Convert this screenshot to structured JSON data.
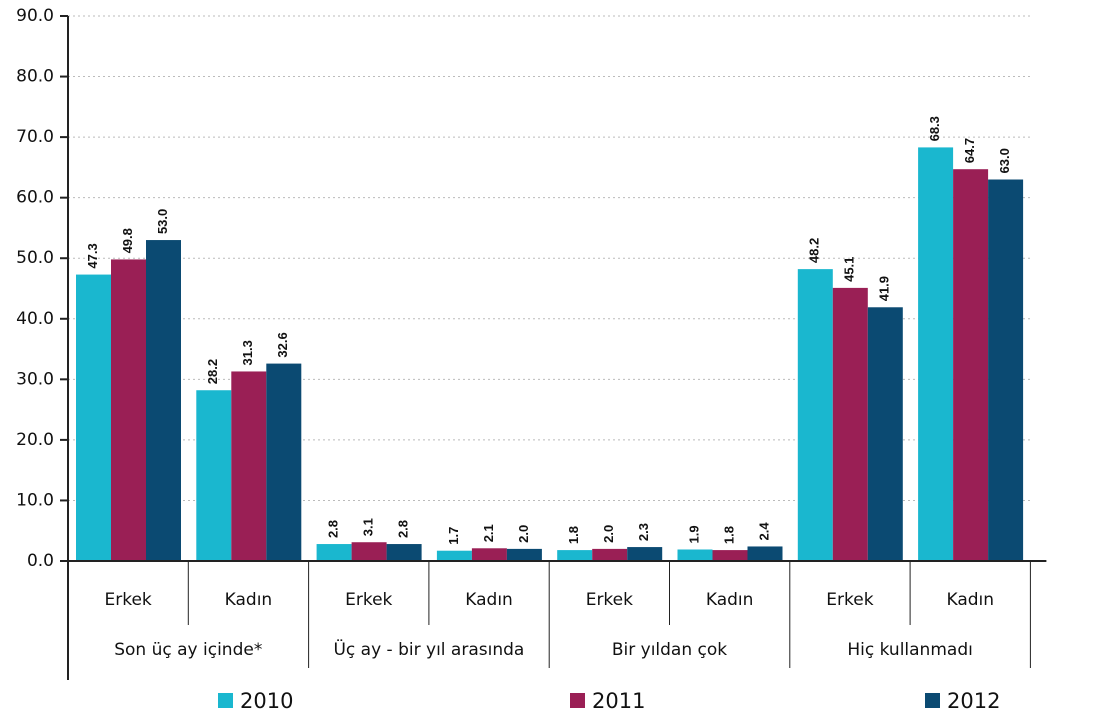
{
  "chart_data": {
    "type": "bar",
    "categories": [
      "Erkek",
      "Kadın",
      "Erkek",
      "Kadın",
      "Erkek",
      "Kadın",
      "Erkek",
      "Kadın"
    ],
    "groups": [
      "Son üç ay içinde*",
      "Üç ay - bir yıl arasında",
      "Bir yıldan çok",
      "Hiç kullanmadı"
    ],
    "series": [
      {
        "name": "2010",
        "color": "#1ab7cf",
        "values": [
          47.3,
          28.2,
          2.8,
          1.7,
          1.8,
          1.9,
          48.2,
          68.3
        ],
        "value_labels": [
          "47.3",
          "28.2",
          "2.8",
          "1.7",
          "1.8",
          "1.9",
          "48.2",
          "68.3"
        ]
      },
      {
        "name": "2011",
        "color": "#9a1f55",
        "values": [
          49.8,
          31.3,
          3.1,
          2.1,
          2.0,
          1.8,
          45.1,
          64.7
        ],
        "value_labels": [
          "49.8",
          "31.3",
          "3.1",
          "2.1",
          "2.0",
          "1.8",
          "45.1",
          "64.7"
        ]
      },
      {
        "name": "2012",
        "color": "#0b4a72",
        "values": [
          53.0,
          32.6,
          2.8,
          2.0,
          2.3,
          2.4,
          41.9,
          63.0
        ],
        "value_labels": [
          "53.0",
          "32.6",
          "2.8",
          "2.0",
          "2.3",
          "2.4",
          "41.9",
          "63.0"
        ]
      }
    ],
    "ylim": [
      0,
      90
    ],
    "yticks": [
      {
        "value": 0,
        "label": "0.0"
      },
      {
        "value": 10,
        "label": "10.0"
      },
      {
        "value": 20,
        "label": "20.0"
      },
      {
        "value": 30,
        "label": "30.0"
      },
      {
        "value": 40,
        "label": "40.0"
      },
      {
        "value": 50,
        "label": "50.0"
      },
      {
        "value": 60,
        "label": "60.0"
      },
      {
        "value": 70,
        "label": "70.0"
      },
      {
        "value": 80,
        "label": "80.0"
      },
      {
        "value": 90,
        "label": "90.0"
      }
    ],
    "grid": true,
    "legend": "bottom"
  }
}
